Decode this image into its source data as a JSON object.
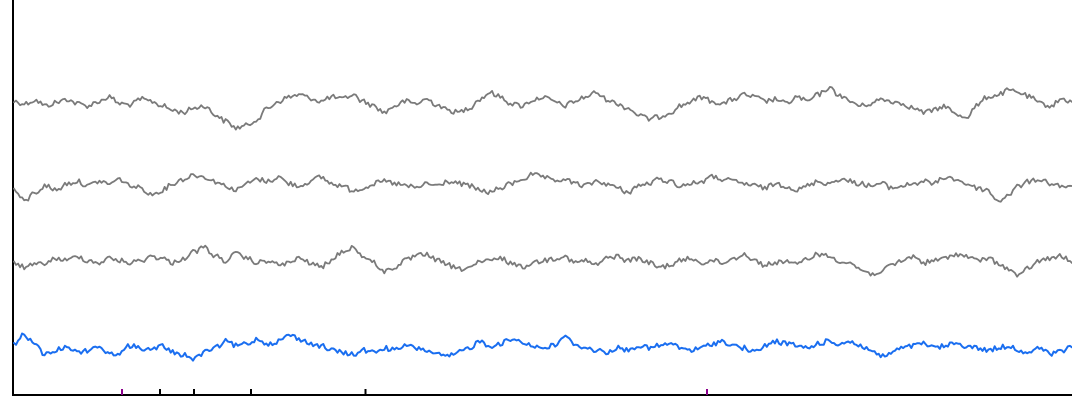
{
  "chart_data": {
    "type": "line",
    "title": "",
    "xlabel": "",
    "ylabel": "",
    "grid": false,
    "legend": "none",
    "x_range": [
      0,
      100
    ],
    "series": [
      {
        "color": "#7a7a7a",
        "values": [
          0.3,
          0.2,
          0.35,
          0.1,
          0.25,
          0.4,
          0.2,
          0.1,
          0.3,
          0.5,
          0.2,
          0.15,
          0.4,
          0.3,
          0.1,
          -0.1,
          -0.2,
          0.0,
          0.1,
          -0.3,
          -0.6,
          -0.9,
          -0.8,
          -0.5,
          0.0,
          0.3,
          0.5,
          0.6,
          0.45,
          0.3,
          0.5,
          0.4,
          0.6,
          0.3,
          0.1,
          -0.2,
          0.1,
          0.3,
          0.2,
          0.4,
          0.15,
          -0.1,
          -0.2,
          0.0,
          0.4,
          0.7,
          0.5,
          0.2,
          0.1,
          0.35,
          0.5,
          0.3,
          0.1,
          0.3,
          0.5,
          0.7,
          0.4,
          0.2,
          0.0,
          -0.3,
          -0.5,
          -0.4,
          -0.2,
          0.1,
          0.3,
          0.5,
          0.3,
          0.2,
          0.4,
          0.6,
          0.5,
          0.3,
          0.4,
          0.2,
          0.5,
          0.3,
          0.6,
          0.9,
          0.6,
          0.3,
          0.1,
          0.2,
          0.4,
          0.3,
          0.2,
          0.0,
          -0.2,
          -0.1,
          0.1,
          -0.3,
          -0.4,
          0.1,
          0.5,
          0.6,
          0.8,
          0.7,
          0.5,
          0.2,
          0.1,
          0.4,
          0.3
        ]
      },
      {
        "color": "#7a7a7a",
        "values": [
          -0.1,
          -0.6,
          -0.2,
          0.1,
          -0.1,
          0.2,
          0.3,
          0.1,
          0.3,
          0.2,
          0.4,
          0.1,
          0.0,
          -0.3,
          -0.1,
          0.2,
          0.4,
          0.6,
          0.5,
          0.3,
          0.1,
          -0.1,
          0.2,
          0.4,
          0.3,
          0.5,
          0.2,
          0.1,
          0.3,
          0.5,
          0.2,
          0.1,
          -0.1,
          0.0,
          0.2,
          0.3,
          0.2,
          0.1,
          0.0,
          0.2,
          0.1,
          0.3,
          0.2,
          0.1,
          -0.1,
          -0.2,
          0.0,
          0.2,
          0.4,
          0.6,
          0.5,
          0.3,
          0.4,
          0.2,
          0.1,
          0.3,
          0.2,
          0.0,
          -0.2,
          0.1,
          0.2,
          0.4,
          0.3,
          0.1,
          0.2,
          0.3,
          0.5,
          0.4,
          0.3,
          0.2,
          0.1,
          0.0,
          0.2,
          0.1,
          -0.1,
          0.1,
          0.3,
          0.2,
          0.4,
          0.3,
          0.2,
          0.1,
          0.2,
          0.0,
          0.1,
          0.2,
          0.3,
          0.2,
          0.5,
          0.4,
          0.2,
          0.0,
          -0.1,
          -0.6,
          -0.3,
          0.1,
          0.3,
          0.4,
          0.2,
          0.1,
          0.0
        ]
      },
      {
        "color": "#7a7a7a",
        "values": [
          0.1,
          -0.1,
          0.0,
          0.1,
          0.3,
          0.2,
          0.4,
          0.2,
          0.1,
          0.3,
          0.2,
          0.1,
          0.2,
          0.4,
          0.3,
          0.1,
          0.3,
          0.6,
          0.8,
          0.4,
          0.2,
          0.5,
          0.3,
          0.1,
          0.2,
          0.0,
          0.1,
          0.3,
          0.1,
          -0.1,
          0.2,
          0.6,
          0.8,
          0.4,
          0.1,
          -0.3,
          -0.1,
          0.2,
          0.4,
          0.5,
          0.2,
          0.0,
          -0.2,
          -0.1,
          0.1,
          0.2,
          0.3,
          0.1,
          -0.1,
          0.1,
          0.2,
          0.3,
          0.4,
          0.1,
          0.2,
          0.0,
          0.3,
          0.4,
          0.2,
          0.3,
          0.1,
          -0.1,
          0.0,
          0.2,
          0.3,
          0.1,
          0.2,
          0.1,
          0.3,
          0.5,
          0.2,
          0.0,
          0.1,
          0.2,
          0.0,
          0.3,
          0.5,
          0.4,
          0.2,
          0.1,
          -0.2,
          -0.4,
          -0.3,
          0.0,
          0.2,
          0.4,
          0.1,
          0.2,
          0.3,
          0.5,
          0.4,
          0.2,
          0.3,
          0.1,
          -0.2,
          -0.5,
          -0.1,
          0.2,
          0.3,
          0.4,
          0.1
        ]
      },
      {
        "color": "#1a6ef0",
        "values": [
          0.2,
          0.6,
          0.1,
          -0.3,
          -0.1,
          0.1,
          -0.2,
          -0.1,
          0.1,
          -0.3,
          -0.2,
          0.1,
          0.0,
          -0.1,
          0.1,
          -0.2,
          -0.3,
          -0.5,
          -0.2,
          0.0,
          0.3,
          0.1,
          0.2,
          0.4,
          0.2,
          0.3,
          0.6,
          0.4,
          0.2,
          0.1,
          -0.1,
          -0.2,
          -0.3,
          -0.1,
          -0.2,
          0.0,
          -0.1,
          0.1,
          0.0,
          -0.1,
          -0.3,
          -0.4,
          -0.2,
          0.0,
          0.3,
          0.1,
          0.2,
          0.4,
          0.3,
          0.1,
          0.0,
          0.1,
          0.5,
          0.2,
          0.0,
          -0.1,
          -0.2,
          0.0,
          -0.1,
          0.1,
          0.0,
          0.1,
          0.2,
          0.0,
          -0.1,
          0.0,
          0.2,
          0.3,
          0.1,
          0.0,
          -0.2,
          0.1,
          0.3,
          0.2,
          0.1,
          0.0,
          0.2,
          0.3,
          0.2,
          0.3,
          0.1,
          -0.1,
          -0.4,
          -0.2,
          0.0,
          0.1,
          0.2,
          0.0,
          0.1,
          0.2,
          0.1,
          0.0,
          -0.1,
          0.0,
          0.1,
          -0.1,
          -0.2,
          0.0,
          -0.3,
          -0.1,
          0.0
        ]
      }
    ],
    "x_ticks": [
      {
        "x": 10.2,
        "color": "#8b008b"
      },
      {
        "x": 13.8,
        "color": "#000000"
      },
      {
        "x": 17.0,
        "color": "#000000"
      },
      {
        "x": 22.4,
        "color": "#000000"
      },
      {
        "x": 33.2,
        "color": "#000000"
      },
      {
        "x": 65.5,
        "color": "#8b008b"
      }
    ]
  }
}
